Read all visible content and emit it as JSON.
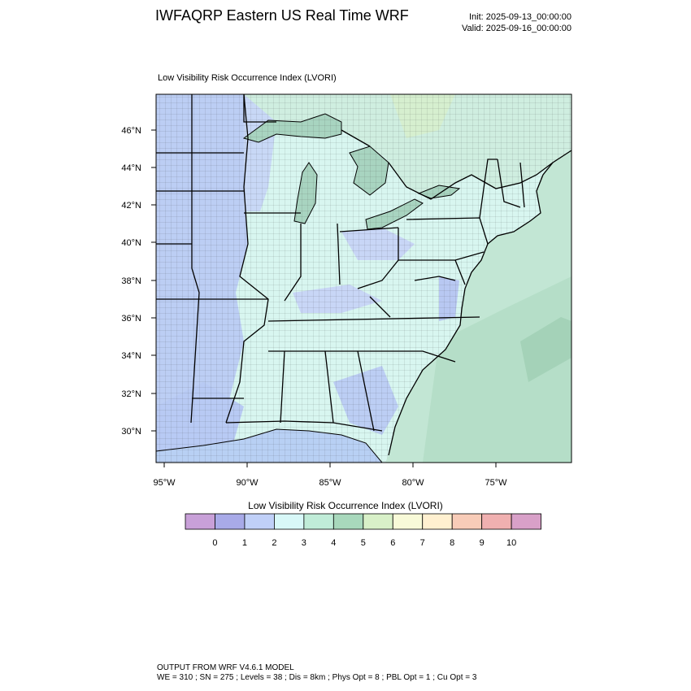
{
  "header": {
    "title": "IWFAQRP Eastern US Real Time WRF",
    "init": "Init: 2025-09-13_00:00:00",
    "valid": "Valid: 2025-09-16_00:00:00"
  },
  "plot": {
    "title": "Low Visibility Risk Occurrence Index   (LVORI)",
    "lat_labels": [
      "46°N",
      "44°N",
      "42°N",
      "40°N",
      "38°N",
      "36°N",
      "34°N",
      "32°N",
      "30°N"
    ],
    "lon_labels": [
      "95°W",
      "90°W",
      "85°W",
      "80°W",
      "75°W"
    ]
  },
  "colorbar": {
    "title": "Low Visibility Risk Occurrence Index  (LVORI)",
    "labels": [
      "0",
      "1",
      "2",
      "3",
      "4",
      "5",
      "6",
      "7",
      "8",
      "9",
      "10"
    ],
    "colors": [
      "#c8a0d8",
      "#a8aae8",
      "#c0d0f8",
      "#d8f8f8",
      "#c0ecd8",
      "#a8d8bc",
      "#d8f0c8",
      "#f8fad8",
      "#fff0d0",
      "#f8ccb8",
      "#f0b0b0",
      "#d8a0c8"
    ]
  },
  "footer": {
    "line1": "OUTPUT FROM WRF V4.6.1 MODEL",
    "line2": "WE = 310 ; SN = 275 ; Levels = 38 ; Dis = 8km ; Phys Opt = 8 ; PBL Opt = 1 ; Cu Opt = 3"
  }
}
